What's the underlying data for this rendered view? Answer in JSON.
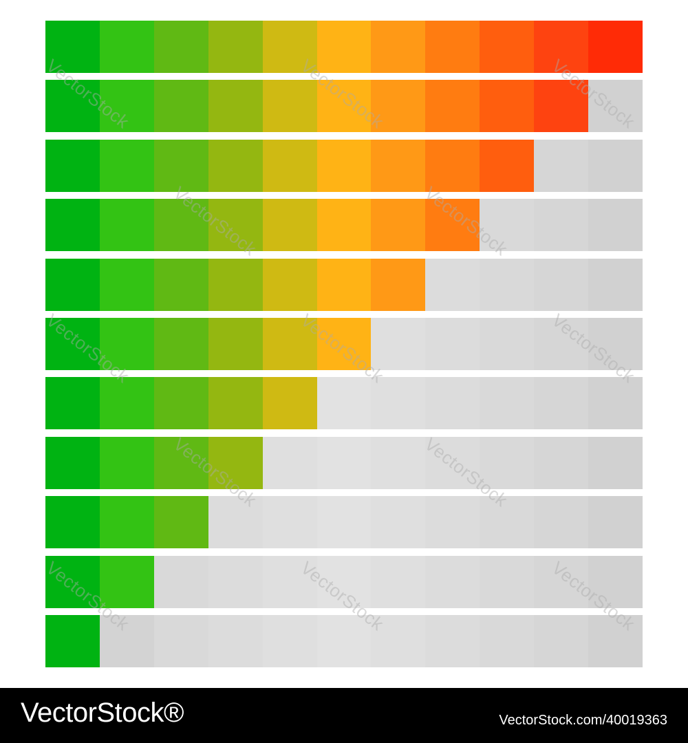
{
  "meter": {
    "segments_total": 11,
    "fill_levels": [
      11,
      10,
      9,
      8,
      7,
      6,
      5,
      4,
      3,
      2,
      1
    ],
    "segment_colors": [
      "#00b312",
      "#33c314",
      "#60b914",
      "#94b711",
      "#cfba13",
      "#ffb315",
      "#ff9916",
      "#ff7c11",
      "#ff5e0e",
      "#fe4310",
      "#ff2b06"
    ],
    "empty_colors": [
      "#d6d6d6",
      "#d3d3d3",
      "#d9d9d9",
      "#dcdcdc",
      "#dfdfdf",
      "#e2e2e2",
      "#dfdfdf",
      "#dcdcdc",
      "#d9d9d9",
      "#d6d6d6",
      "#d1d1d1"
    ]
  },
  "watermark": {
    "text": "VectorStock"
  },
  "footer": {
    "brand": "VectorStock®",
    "stock_id": "VectorStock.com/40019363"
  }
}
